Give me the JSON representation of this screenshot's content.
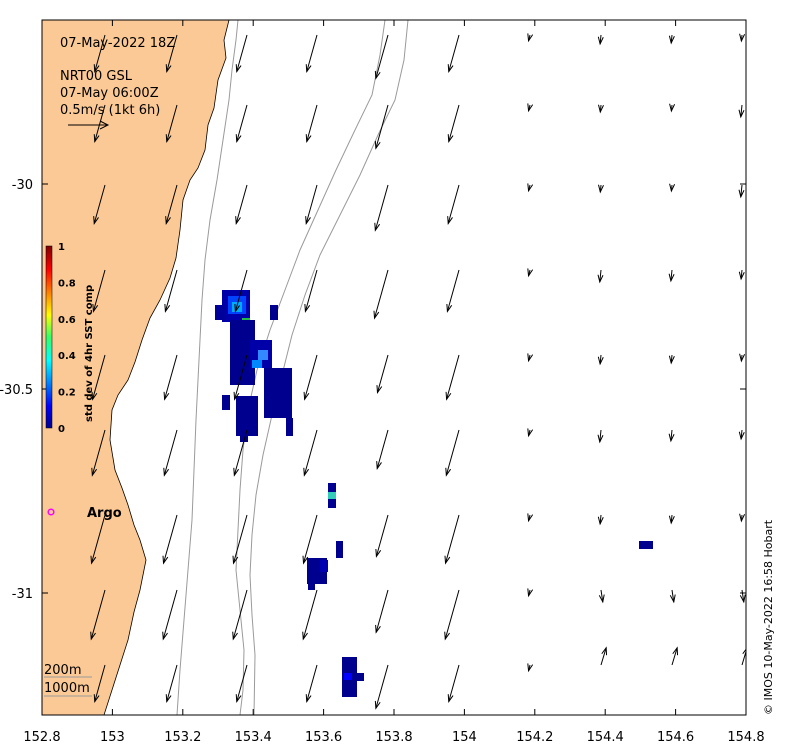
{
  "info": {
    "date": "07-May-2022 18Z",
    "product": "NRT00 GSL",
    "time": "07-May 06:00Z",
    "scale": "0.5m/s (1kt 6h)"
  },
  "colorbar": {
    "label": "std dev of 4hr SST comp",
    "ticks": [
      "0",
      "0.2",
      "0.4",
      "0.6",
      "0.8",
      "1"
    ]
  },
  "x_ticks": [
    "152.8",
    "153",
    "153.2",
    "153.4",
    "153.6",
    "153.8",
    "154",
    "154.2",
    "154.4",
    "154.6",
    "154.8"
  ],
  "y_ticks": [
    "-30",
    "-30.5",
    "-31"
  ],
  "argo_label": "Argo",
  "isobaths": [
    "200m",
    "1000m"
  ],
  "credit": "© IMOS 10-May-2022 16:58 Hobart",
  "colors": {
    "land": "#fbc995",
    "argo": "#ff00ff",
    "isobath": "#9a9a9a"
  }
}
